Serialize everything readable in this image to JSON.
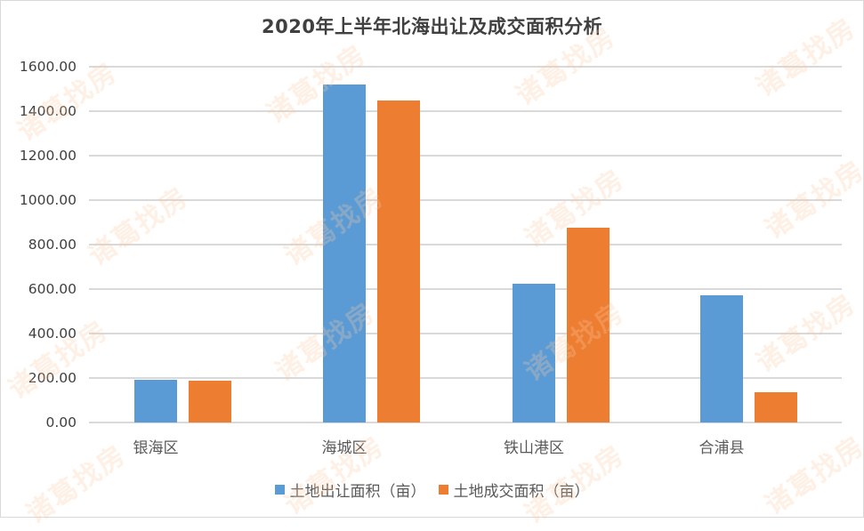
{
  "chart_data": {
    "type": "bar",
    "title": "2020年上半年北海出让及成交面积分析",
    "categories": [
      "银海区",
      "海城区",
      "铁山港区",
      "合浦县"
    ],
    "series": [
      {
        "name": "土地出让面积（亩）",
        "color": "#5b9bd5",
        "values": [
          192,
          1520,
          625,
          573
        ]
      },
      {
        "name": "土地成交面积（亩）",
        "color": "#ed7d31",
        "values": [
          190,
          1447,
          877,
          136
        ]
      }
    ],
    "xlabel": "",
    "ylabel": "",
    "ylim": [
      0,
      1600
    ],
    "yticks": [
      "0.00",
      "200.00",
      "400.00",
      "600.00",
      "800.00",
      "1000.00",
      "1200.00",
      "1400.00",
      "1600.00"
    ],
    "grid": true,
    "legend_position": "bottom"
  },
  "watermark": "诸葛找房"
}
